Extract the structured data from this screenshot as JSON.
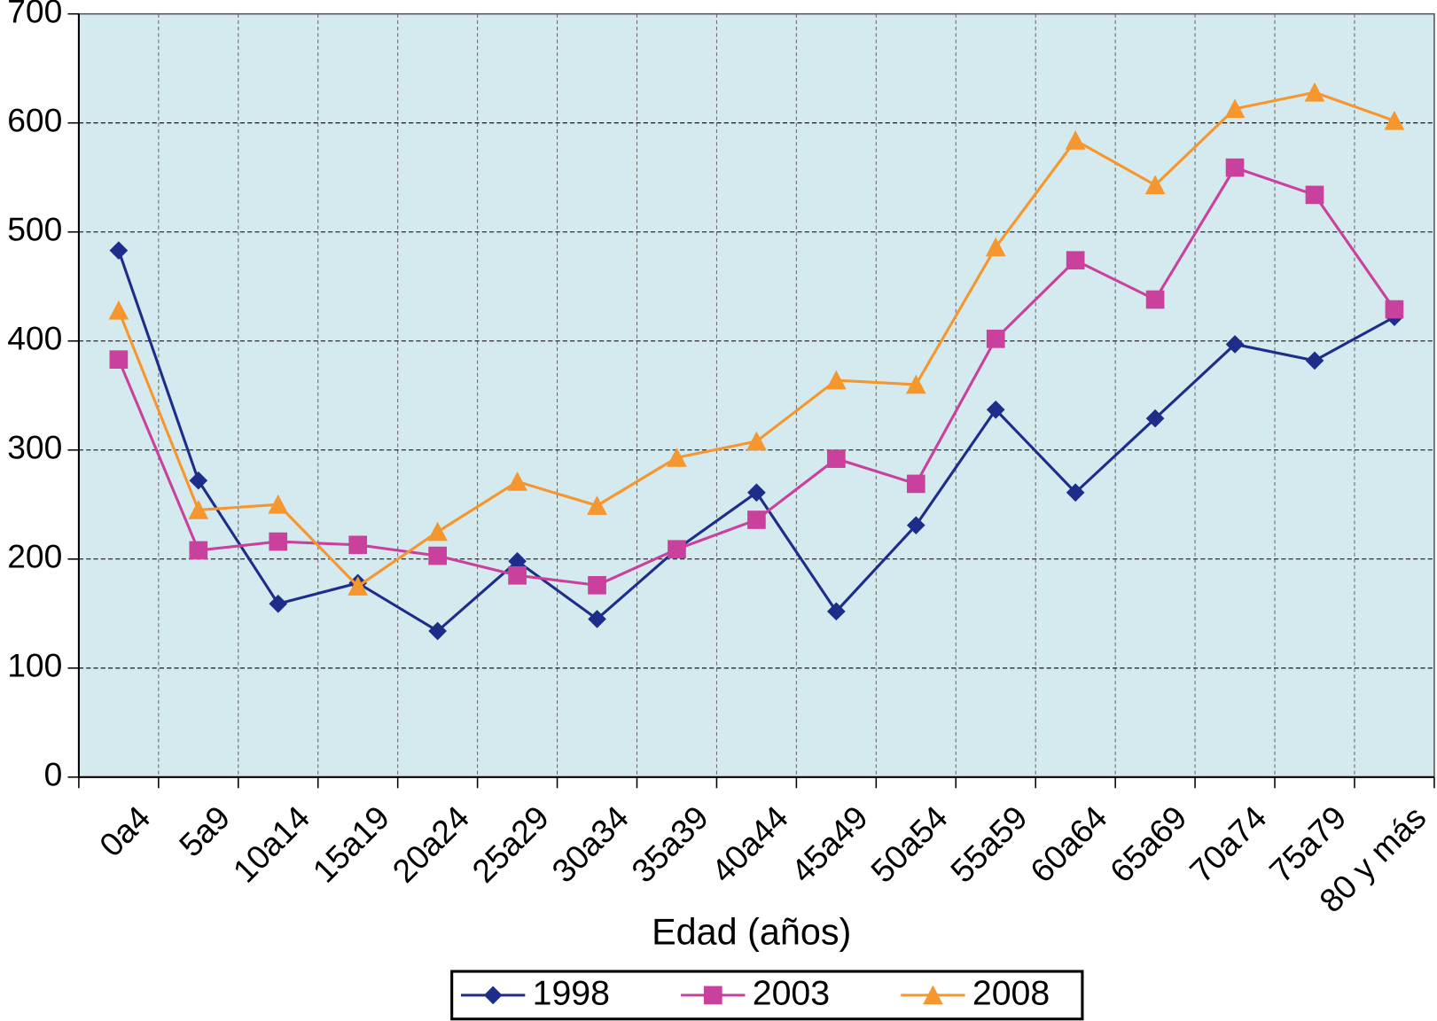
{
  "chart_data": {
    "type": "line",
    "x_label": "Edad (años)",
    "categories": [
      "0a4",
      "5a9",
      "10a14",
      "15a19",
      "20a24",
      "25a29",
      "30a34",
      "35a39",
      "40a44",
      "45a49",
      "50a54",
      "55a59",
      "60a64",
      "65a69",
      "70a74",
      "75a79",
      "80 y más"
    ],
    "series": [
      {
        "name": "1998",
        "color": "#1f2d8a",
        "marker": "diamond",
        "values": [
          483,
          272,
          159,
          178,
          134,
          198,
          145,
          209,
          261,
          152,
          231,
          337,
          261,
          329,
          397,
          382,
          422
        ]
      },
      {
        "name": "2003",
        "color": "#c9419c",
        "marker": "square",
        "values": [
          383,
          208,
          216,
          213,
          203,
          185,
          176,
          209,
          236,
          292,
          269,
          402,
          474,
          438,
          559,
          534,
          429
        ]
      },
      {
        "name": "2008",
        "color": "#f5962e",
        "marker": "triangle",
        "values": [
          428,
          245,
          250,
          175,
          225,
          271,
          249,
          293,
          308,
          364,
          360,
          486,
          584,
          543,
          613,
          628,
          602
        ]
      }
    ],
    "ylim": [
      0,
      700
    ],
    "yticks": [
      0,
      100,
      200,
      300,
      400,
      500,
      600,
      700
    ],
    "grid": true,
    "background": "#d5eaee",
    "legend": "bottom"
  }
}
